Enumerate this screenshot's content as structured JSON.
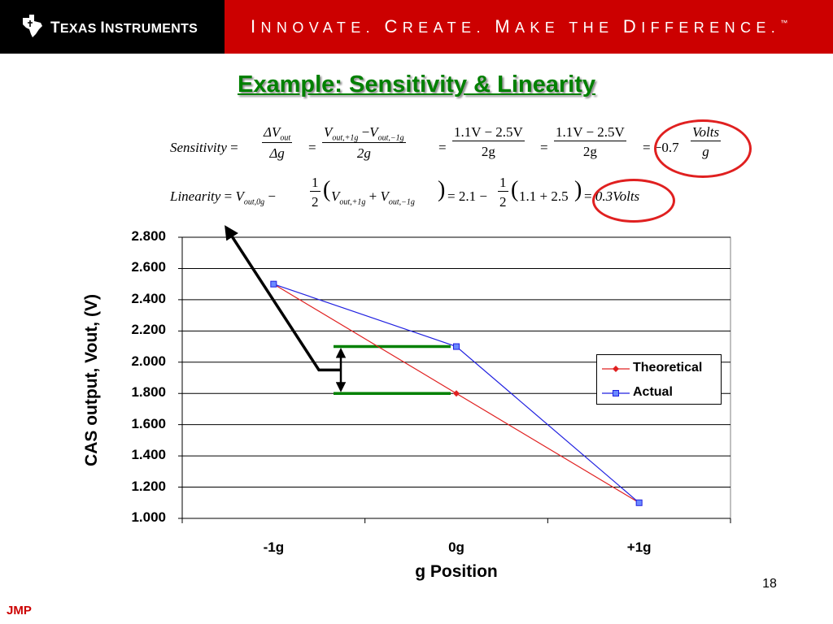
{
  "header": {
    "brand_first": "T",
    "brand_rest_1": "EXAS ",
    "brand_second": "I",
    "brand_rest_2": "NSTRUMENTS",
    "tagline_parts": [
      "I",
      "NNOVATE. ",
      "C",
      "REATE. ",
      "M",
      "AKE THE ",
      "D",
      "IFFERENCE."
    ],
    "trademark": "™",
    "banner_color": "#cc0000"
  },
  "slide_title": "Example: Sensitivity & Linearity",
  "equations": {
    "sensitivity_label": "Sensitivity",
    "sensitivity_frac1_num": "ΔV",
    "sensitivity_frac1_num_sub": "out",
    "sensitivity_frac1_den": "Δg",
    "sensitivity_frac2_num_a": "V",
    "sensitivity_frac2_num_a_sub": "out,+1g",
    "sensitivity_frac2_num_b": "V",
    "sensitivity_frac2_num_b_sub": "out,−1g",
    "sensitivity_frac2_den": "2g",
    "sensitivity_frac3_num": "1.1V − 2.5V",
    "sensitivity_frac3_den": "2g",
    "sensitivity_frac4_num": "1.1V − 2.5V",
    "sensitivity_frac4_den": "2g",
    "sensitivity_result_coef": "−0.7",
    "sensitivity_result_num": "Volts",
    "sensitivity_result_den": "g",
    "linearity_label": "Linearity",
    "linearity_v0": "V",
    "linearity_v0_sub": "out,0g",
    "linearity_half_num": "1",
    "linearity_half_den": "2",
    "linearity_va": "V",
    "linearity_va_sub": "out,+1g",
    "linearity_vb": "V",
    "linearity_vb_sub": "out,−1g",
    "linearity_step": "= 2.1 −",
    "linearity_inner": "1.1 + 2.5",
    "linearity_result": "0.3Volts",
    "oval_color": "#e02020"
  },
  "chart_data": {
    "type": "line",
    "categories": [
      "-1g",
      "0g",
      "+1g"
    ],
    "series": [
      {
        "name": "Theoretical",
        "values": [
          2.5,
          1.8,
          1.1
        ],
        "color": "#e02020",
        "marker": "diamond"
      },
      {
        "name": "Actual",
        "values": [
          2.5,
          2.1,
          1.1
        ],
        "color": "#2020e0",
        "marker": "square"
      }
    ],
    "xlabel": "g Position",
    "ylabel": "CAS output, Vout, (V)",
    "ylim": [
      1.0,
      2.8
    ],
    "yticks": [
      "1.000",
      "1.200",
      "1.400",
      "1.600",
      "1.800",
      "2.000",
      "2.200",
      "2.400",
      "2.600",
      "2.800"
    ],
    "grid": true,
    "legend": "right",
    "annotations": {
      "green_levels": [
        2.1,
        1.8
      ],
      "green_color": "#008000",
      "arrow_color": "#000000"
    }
  },
  "footer": {
    "page_number": "18",
    "author": "JMP"
  }
}
